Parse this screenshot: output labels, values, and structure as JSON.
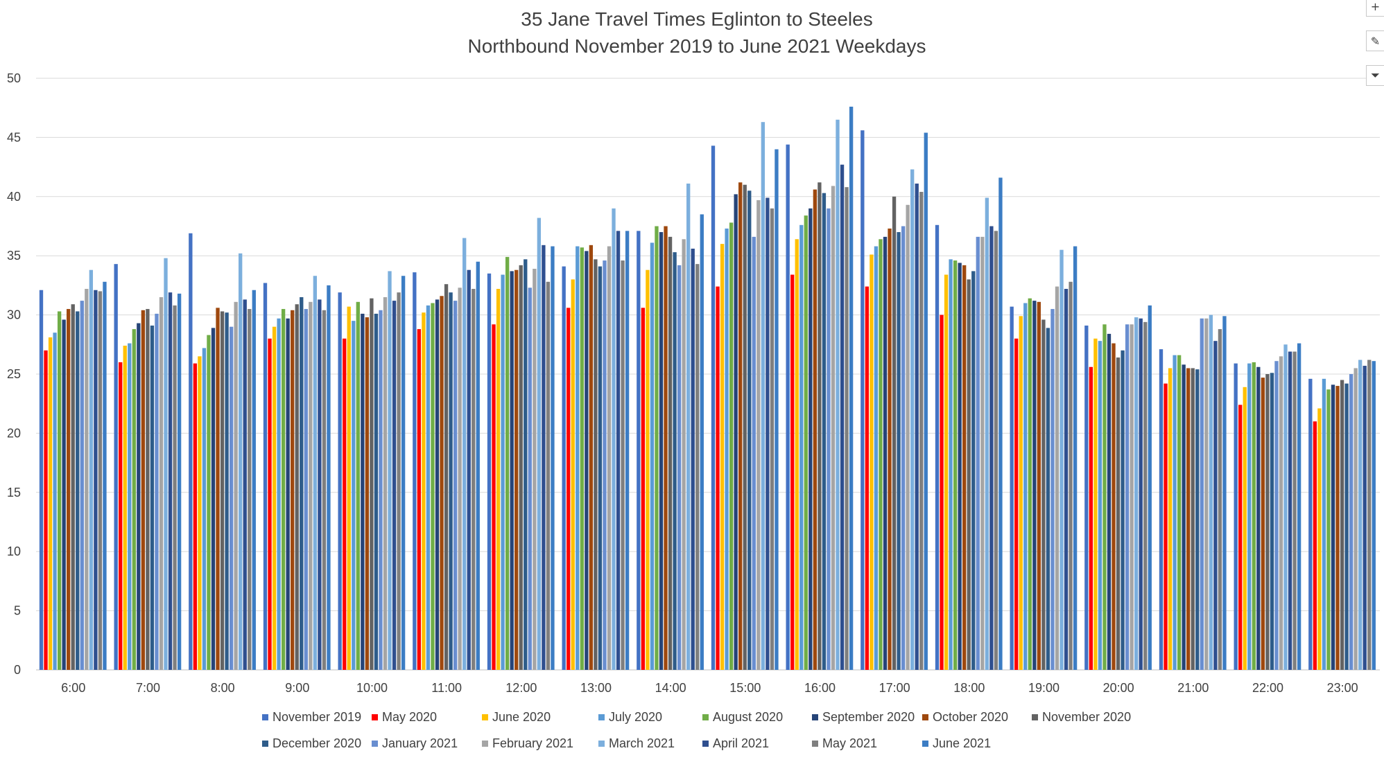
{
  "chart_data": {
    "type": "bar",
    "title": "35 Jane Travel Times Eglinton to Steeles",
    "subtitle": "Northbound November 2019 to June 2021 Weekdays",
    "xlabel": "",
    "ylabel": "",
    "ylim": [
      0,
      50
    ],
    "yticks": [
      0,
      5,
      10,
      15,
      20,
      25,
      30,
      35,
      40,
      45,
      50
    ],
    "grid": true,
    "legend_position": "bottom",
    "categories": [
      "6:00",
      "7:00",
      "8:00",
      "9:00",
      "10:00",
      "11:00",
      "12:00",
      "13:00",
      "14:00",
      "15:00",
      "16:00",
      "17:00",
      "18:00",
      "19:00",
      "20:00",
      "21:00",
      "22:00",
      "23:00"
    ],
    "series": [
      {
        "name": "November 2019",
        "color": "#4472C4",
        "values": [
          32.1,
          34.3,
          36.9,
          32.7,
          31.9,
          33.6,
          33.5,
          34.1,
          37.1,
          44.3,
          44.4,
          45.6,
          37.6,
          30.7,
          29.1,
          27.1,
          25.9,
          24.6
        ]
      },
      {
        "name": "May 2020",
        "color": "#FF0000",
        "values": [
          27.0,
          26.0,
          25.9,
          28.0,
          28.0,
          28.8,
          29.2,
          30.6,
          30.6,
          32.4,
          33.4,
          32.4,
          30.0,
          28.0,
          25.6,
          24.2,
          22.4,
          21.0
        ]
      },
      {
        "name": "June 2020",
        "color": "#FFC000",
        "values": [
          28.1,
          27.4,
          26.5,
          29.0,
          30.7,
          30.2,
          32.2,
          33.0,
          33.8,
          36.0,
          36.4,
          35.1,
          33.4,
          29.9,
          28.0,
          25.5,
          23.9,
          22.1
        ]
      },
      {
        "name": "July 2020",
        "color": "#5B9BD5",
        "values": [
          28.5,
          27.6,
          27.2,
          29.7,
          29.5,
          30.8,
          33.4,
          35.8,
          36.1,
          37.3,
          37.6,
          35.8,
          34.7,
          31.0,
          27.8,
          26.6,
          25.9,
          24.6
        ]
      },
      {
        "name": "August 2020",
        "color": "#70AD47",
        "values": [
          30.3,
          28.8,
          28.3,
          30.5,
          31.1,
          31.0,
          34.9,
          35.7,
          37.5,
          37.8,
          38.4,
          36.4,
          34.6,
          31.4,
          29.2,
          26.6,
          26.0,
          23.7
        ]
      },
      {
        "name": "September 2020",
        "color": "#264478",
        "values": [
          29.6,
          29.3,
          28.9,
          29.7,
          30.1,
          31.3,
          33.7,
          35.4,
          37.0,
          40.2,
          39.0,
          36.6,
          34.4,
          31.2,
          28.4,
          25.8,
          25.6,
          24.1
        ]
      },
      {
        "name": "October 2020",
        "color": "#9E480E",
        "values": [
          30.5,
          30.4,
          30.6,
          30.4,
          29.8,
          31.6,
          33.8,
          35.9,
          37.5,
          41.2,
          40.6,
          37.3,
          34.2,
          31.1,
          27.6,
          25.5,
          24.7,
          24.0
        ]
      },
      {
        "name": "November 2020",
        "color": "#636363",
        "values": [
          30.9,
          30.5,
          30.3,
          30.9,
          31.4,
          32.6,
          34.2,
          34.7,
          36.6,
          41.0,
          41.2,
          40.0,
          33.0,
          29.6,
          26.4,
          25.5,
          25.0,
          24.5
        ]
      },
      {
        "name": "December 2020",
        "color": "#2E5C8A",
        "values": [
          30.3,
          29.1,
          30.2,
          31.5,
          30.1,
          31.9,
          34.7,
          34.1,
          35.3,
          40.5,
          40.3,
          37.0,
          33.7,
          28.9,
          27.0,
          25.4,
          25.1,
          24.2
        ]
      },
      {
        "name": "January 2021",
        "color": "#698ED0",
        "values": [
          31.2,
          30.1,
          29.0,
          30.5,
          30.4,
          31.2,
          32.3,
          34.6,
          34.2,
          36.6,
          39.0,
          37.5,
          36.6,
          30.5,
          29.2,
          29.7,
          26.1,
          25.0
        ]
      },
      {
        "name": "February 2021",
        "color": "#A5A5A5",
        "values": [
          32.2,
          31.5,
          31.1,
          31.1,
          31.5,
          32.3,
          33.9,
          35.8,
          36.4,
          39.7,
          40.9,
          39.3,
          36.6,
          32.4,
          29.2,
          29.7,
          26.5,
          25.5
        ]
      },
      {
        "name": "March 2021",
        "color": "#7CAFDD",
        "values": [
          33.8,
          34.8,
          35.2,
          33.3,
          33.7,
          36.5,
          38.2,
          39.0,
          41.1,
          46.3,
          46.5,
          42.3,
          39.9,
          35.5,
          29.8,
          30.0,
          27.5,
          26.2
        ]
      },
      {
        "name": "April 2021",
        "color": "#2F4F8F",
        "values": [
          32.1,
          31.9,
          31.3,
          31.3,
          31.2,
          33.8,
          35.9,
          37.1,
          35.6,
          39.9,
          42.7,
          41.1,
          37.5,
          32.2,
          29.7,
          27.8,
          26.9,
          25.7
        ]
      },
      {
        "name": "May 2021",
        "color": "#7F7F7F",
        "values": [
          32.0,
          30.8,
          30.5,
          30.4,
          31.9,
          32.2,
          32.8,
          34.6,
          34.3,
          39.0,
          40.8,
          40.4,
          37.1,
          32.8,
          29.4,
          28.8,
          26.9,
          26.2
        ]
      },
      {
        "name": "June 2021",
        "color": "#3C7DC4",
        "values": [
          32.8,
          31.8,
          32.1,
          32.5,
          33.3,
          34.5,
          35.8,
          37.1,
          38.5,
          44.0,
          47.6,
          45.4,
          41.6,
          35.8,
          30.8,
          29.9,
          27.6,
          26.1
        ]
      }
    ]
  },
  "toolbar": {
    "buttons": [
      {
        "name": "chart-elements-button",
        "icon": "plus-icon",
        "glyph": "+"
      },
      {
        "name": "chart-styles-button",
        "icon": "brush-icon",
        "glyph": "✎"
      },
      {
        "name": "chart-filters-button",
        "icon": "filter-icon",
        "glyph": "⏷"
      }
    ]
  }
}
